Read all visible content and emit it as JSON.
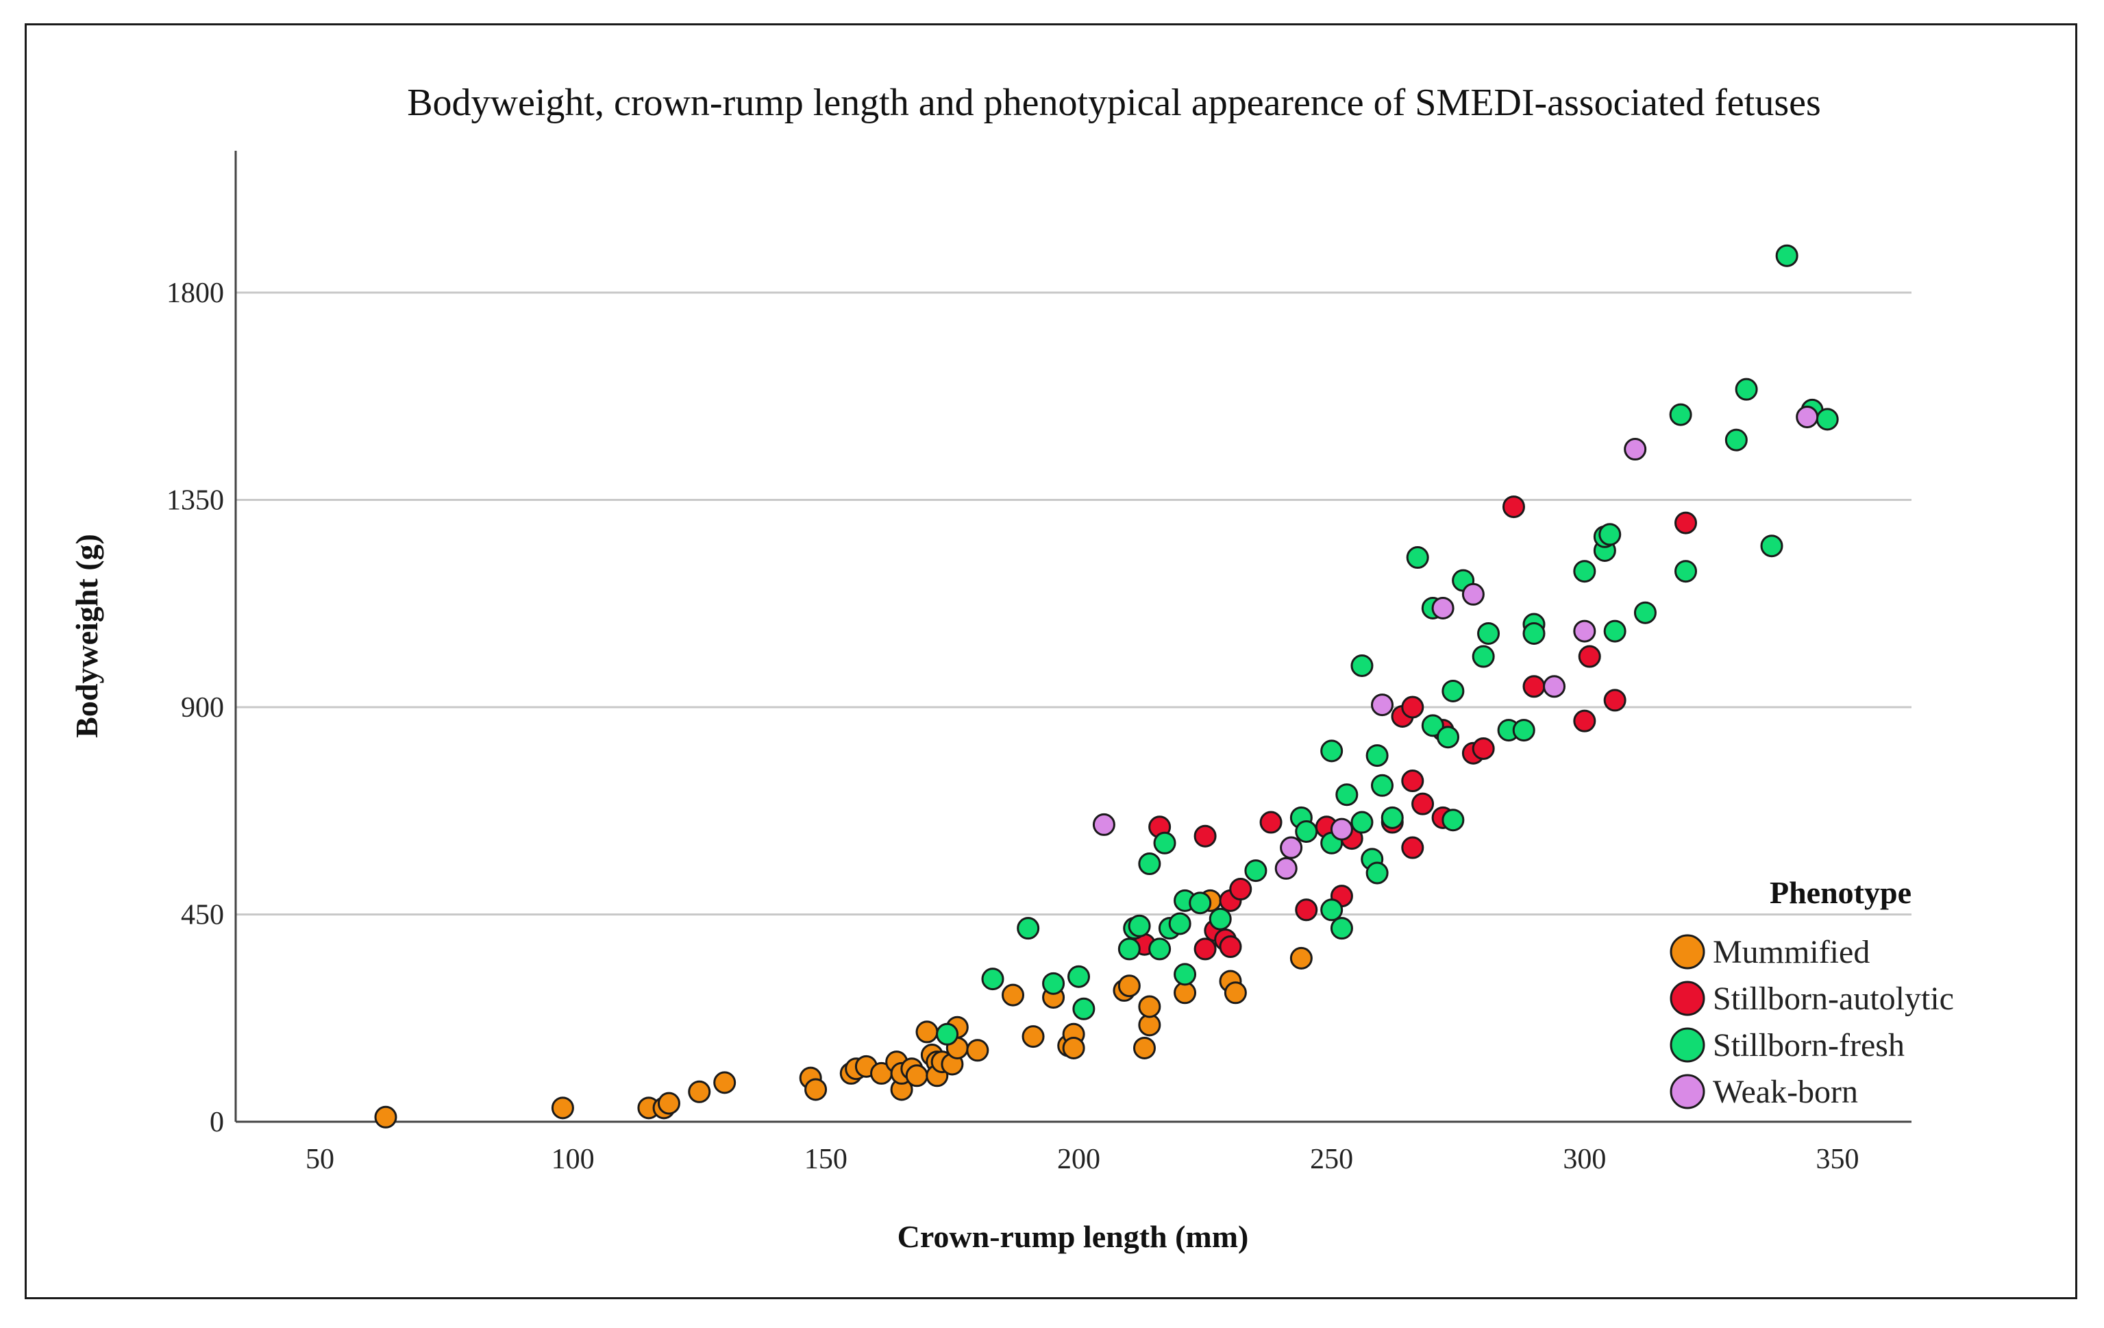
{
  "chart_data": {
    "type": "scatter",
    "title": "Bodyweight, crown-rump length and phenotypical appearence of SMEDI-associated fetuses",
    "xlabel": "Crown-rump length (mm)",
    "ylabel": "Bodyweight (g)",
    "xlim": [
      34,
      350
    ],
    "ylim": [
      0,
      2100
    ],
    "xticks": [
      50,
      100,
      150,
      200,
      250,
      300,
      350
    ],
    "yticks": [
      0,
      450,
      900,
      1350,
      1800
    ],
    "grid": "horizontal",
    "legend": {
      "title": "Phenotype",
      "position": "bottom-right"
    },
    "series": [
      {
        "name": "Mummified",
        "color": "#f28c0f",
        "points": [
          [
            63,
            10
          ],
          [
            98,
            30
          ],
          [
            115,
            30
          ],
          [
            118,
            30
          ],
          [
            119,
            40
          ],
          [
            125,
            65
          ],
          [
            130,
            85
          ],
          [
            147,
            95
          ],
          [
            148,
            70
          ],
          [
            155,
            105
          ],
          [
            156,
            115
          ],
          [
            158,
            120
          ],
          [
            161,
            105
          ],
          [
            164,
            130
          ],
          [
            165,
            70
          ],
          [
            165,
            105
          ],
          [
            167,
            115
          ],
          [
            168,
            100
          ],
          [
            170,
            195
          ],
          [
            171,
            145
          ],
          [
            172,
            130
          ],
          [
            172,
            100
          ],
          [
            173,
            130
          ],
          [
            175,
            125
          ],
          [
            176,
            160
          ],
          [
            176,
            205
          ],
          [
            180,
            155
          ],
          [
            187,
            275
          ],
          [
            191,
            185
          ],
          [
            195,
            270
          ],
          [
            198,
            165
          ],
          [
            199,
            190
          ],
          [
            199,
            160
          ],
          [
            209,
            285
          ],
          [
            210,
            295
          ],
          [
            213,
            160
          ],
          [
            214,
            210
          ],
          [
            214,
            250
          ],
          [
            221,
            280
          ],
          [
            226,
            480
          ],
          [
            230,
            305
          ],
          [
            231,
            280
          ],
          [
            244,
            355
          ]
        ]
      },
      {
        "name": "Stillborn-autolytic",
        "color": "#e8102e",
        "points": [
          [
            213,
            385
          ],
          [
            216,
            640
          ],
          [
            225,
            620
          ],
          [
            225,
            375
          ],
          [
            227,
            415
          ],
          [
            229,
            395
          ],
          [
            230,
            380
          ],
          [
            230,
            480
          ],
          [
            232,
            505
          ],
          [
            238,
            650
          ],
          [
            245,
            460
          ],
          [
            249,
            640
          ],
          [
            252,
            490
          ],
          [
            254,
            615
          ],
          [
            262,
            650
          ],
          [
            264,
            880
          ],
          [
            266,
            900
          ],
          [
            266,
            595
          ],
          [
            266,
            740
          ],
          [
            268,
            690
          ],
          [
            272,
            850
          ],
          [
            272,
            660
          ],
          [
            278,
            800
          ],
          [
            280,
            810
          ],
          [
            286,
            1335
          ],
          [
            290,
            945
          ],
          [
            300,
            870
          ],
          [
            301,
            1010
          ],
          [
            306,
            915
          ],
          [
            320,
            1300
          ]
        ]
      },
      {
        "name": "Stillborn-fresh",
        "color": "#10dc72",
        "points": [
          [
            174,
            190
          ],
          [
            183,
            310
          ],
          [
            190,
            420
          ],
          [
            195,
            300
          ],
          [
            200,
            315
          ],
          [
            201,
            245
          ],
          [
            210,
            375
          ],
          [
            211,
            420
          ],
          [
            212,
            425
          ],
          [
            214,
            560
          ],
          [
            216,
            375
          ],
          [
            217,
            605
          ],
          [
            218,
            420
          ],
          [
            220,
            430
          ],
          [
            221,
            480
          ],
          [
            221,
            320
          ],
          [
            224,
            475
          ],
          [
            228,
            440
          ],
          [
            235,
            545
          ],
          [
            244,
            660
          ],
          [
            245,
            630
          ],
          [
            250,
            460
          ],
          [
            250,
            805
          ],
          [
            250,
            605
          ],
          [
            252,
            420
          ],
          [
            253,
            710
          ],
          [
            256,
            990
          ],
          [
            256,
            650
          ],
          [
            258,
            570
          ],
          [
            259,
            795
          ],
          [
            259,
            540
          ],
          [
            260,
            730
          ],
          [
            262,
            660
          ],
          [
            267,
            1225
          ],
          [
            270,
            1115
          ],
          [
            270,
            860
          ],
          [
            273,
            835
          ],
          [
            274,
            935
          ],
          [
            274,
            655
          ],
          [
            276,
            1175
          ],
          [
            280,
            1010
          ],
          [
            281,
            1060
          ],
          [
            285,
            850
          ],
          [
            288,
            850
          ],
          [
            290,
            1080
          ],
          [
            290,
            1060
          ],
          [
            300,
            1195
          ],
          [
            304,
            1240
          ],
          [
            304,
            1270
          ],
          [
            305,
            1275
          ],
          [
            306,
            1065
          ],
          [
            312,
            1105
          ],
          [
            319,
            1535
          ],
          [
            320,
            1195
          ],
          [
            330,
            1480
          ],
          [
            332,
            1590
          ],
          [
            337,
            1250
          ],
          [
            340,
            1880
          ],
          [
            345,
            1545
          ],
          [
            348,
            1525
          ]
        ]
      },
      {
        "name": "Weak-born",
        "color": "#d98ae6",
        "points": [
          [
            205,
            645
          ],
          [
            241,
            550
          ],
          [
            242,
            595
          ],
          [
            252,
            635
          ],
          [
            260,
            905
          ],
          [
            272,
            1115
          ],
          [
            278,
            1145
          ],
          [
            294,
            945
          ],
          [
            300,
            1065
          ],
          [
            310,
            1460
          ],
          [
            344,
            1530
          ]
        ]
      }
    ]
  }
}
